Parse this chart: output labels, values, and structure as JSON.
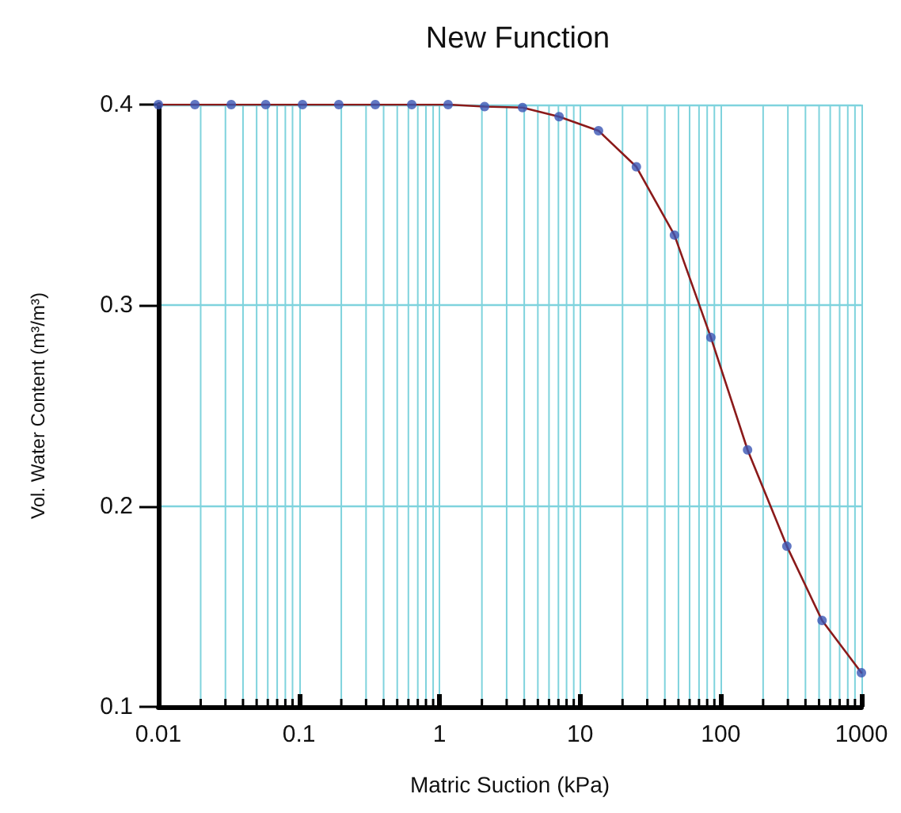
{
  "chart_data": {
    "type": "scatter",
    "title": "New Function",
    "xlabel": "Matric Suction (kPa)",
    "ylabel": "Vol. Water Content (m³/m³)",
    "log": "x",
    "grid": true,
    "xlim": [
      0.01,
      1000
    ],
    "xticks": [
      0.01,
      0.1,
      1,
      10,
      100,
      1000
    ],
    "ylim": [
      0.1,
      0.4
    ],
    "yticks": [
      0.1,
      0.2,
      0.3,
      0.4
    ],
    "series": [
      {
        "type": "line",
        "color": "#8b1a1a",
        "marker": "none",
        "line_style": "solid",
        "x": [
          0.01,
          0.0182,
          0.033,
          0.058,
          0.106,
          0.192,
          0.349,
          0.634,
          1.15,
          2.09,
          3.89,
          7.08,
          13.5,
          25.1,
          46.8,
          85,
          155,
          295,
          525,
          1000
        ],
        "values": [
          0.4,
          0.4,
          0.4,
          0.4,
          0.4,
          0.4,
          0.4,
          0.4,
          0.4,
          0.399,
          0.3985,
          0.394,
          0.387,
          0.369,
          0.335,
          0.284,
          0.228,
          0.18,
          0.143,
          0.117
        ]
      },
      {
        "color": "#3a55b4",
        "marker": "circle",
        "x": [
          0.01,
          0.0182,
          0.033,
          0.058,
          0.106,
          0.192,
          0.349,
          0.634,
          1.15,
          2.09,
          3.89,
          7.08,
          13.5,
          25.1,
          46.8,
          85,
          155,
          295,
          525,
          1000
        ],
        "values": [
          0.4,
          0.4,
          0.4,
          0.4,
          0.4,
          0.4,
          0.4,
          0.4,
          0.4,
          0.399,
          0.3985,
          0.394,
          0.387,
          0.369,
          0.335,
          0.284,
          0.228,
          0.18,
          0.143,
          0.117
        ]
      }
    ]
  }
}
